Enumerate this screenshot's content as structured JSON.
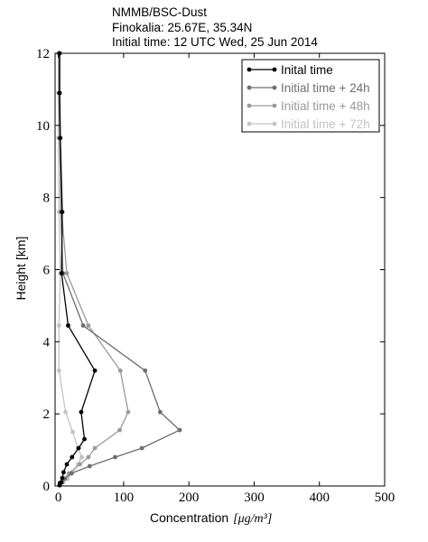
{
  "header": {
    "line1": "NMMB/BSC-Dust",
    "line2": "Finokalia: 25.67E, 35.34N",
    "line3": "Initial time: 12 UTC Wed, 25 Jun 2014"
  },
  "chart_data": {
    "type": "line",
    "xlabel": "Concentration",
    "xlabel_units": "[μg/m³]",
    "ylabel": "Height [km]",
    "xlim": [
      -5,
      500
    ],
    "ylim": [
      0,
      12
    ],
    "xticks": [
      0,
      100,
      200,
      300,
      400,
      500
    ],
    "yticks": [
      0,
      2,
      4,
      6,
      8,
      10,
      12
    ],
    "grid": false,
    "legend_position": "top-right",
    "series": [
      {
        "name": "Inital time",
        "color": "#000000",
        "points": [
          [
            2,
            0.02
          ],
          [
            4,
            0.1
          ],
          [
            6,
            0.22
          ],
          [
            8,
            0.38
          ],
          [
            13,
            0.6
          ],
          [
            21,
            0.8
          ],
          [
            31,
            1.05
          ],
          [
            40,
            1.3
          ],
          [
            35,
            2.05
          ],
          [
            56,
            3.2
          ],
          [
            15,
            4.45
          ],
          [
            5,
            5.9
          ],
          [
            6,
            7.6
          ],
          [
            3,
            9.65
          ],
          [
            2,
            10.9
          ],
          [
            2,
            12
          ]
        ]
      },
      {
        "name": "Initial time + 24h",
        "color": "#6e6e6e",
        "points": [
          [
            2,
            0.02
          ],
          [
            6,
            0.1
          ],
          [
            10,
            0.2
          ],
          [
            20,
            0.35
          ],
          [
            48,
            0.55
          ],
          [
            87,
            0.8
          ],
          [
            128,
            1.05
          ],
          [
            186,
            1.55
          ],
          [
            156,
            2.05
          ],
          [
            133,
            3.2
          ],
          [
            38,
            4.45
          ],
          [
            7,
            5.9
          ],
          [
            4,
            7.6
          ],
          [
            2,
            9.65
          ],
          [
            1,
            10.9
          ],
          [
            1,
            12
          ]
        ]
      },
      {
        "name": "Initial time + 48h",
        "color": "#9a9a9a",
        "points": [
          [
            2,
            0.02
          ],
          [
            5,
            0.1
          ],
          [
            9,
            0.2
          ],
          [
            16,
            0.35
          ],
          [
            33,
            0.6
          ],
          [
            46,
            0.8
          ],
          [
            56,
            1.05
          ],
          [
            94,
            1.55
          ],
          [
            107,
            2.05
          ],
          [
            95,
            3.2
          ],
          [
            46,
            4.45
          ],
          [
            13,
            5.9
          ],
          [
            5,
            7.6
          ],
          [
            3,
            9.65
          ],
          [
            2,
            10.9
          ],
          [
            2,
            12
          ]
        ]
      },
      {
        "name": "Initial time + 72h",
        "color": "#c3c3c3",
        "points": [
          [
            2,
            0.02
          ],
          [
            7,
            0.1
          ],
          [
            14,
            0.2
          ],
          [
            21,
            0.35
          ],
          [
            30,
            0.6
          ],
          [
            36,
            0.8
          ],
          [
            30,
            1.05
          ],
          [
            22,
            1.5
          ],
          [
            11,
            2.05
          ],
          [
            1,
            3.2
          ],
          [
            1,
            4.45
          ],
          [
            3,
            5.9
          ],
          [
            1,
            7.6
          ],
          [
            0,
            9.65
          ],
          [
            0,
            10.9
          ],
          [
            0,
            12
          ]
        ]
      }
    ]
  }
}
